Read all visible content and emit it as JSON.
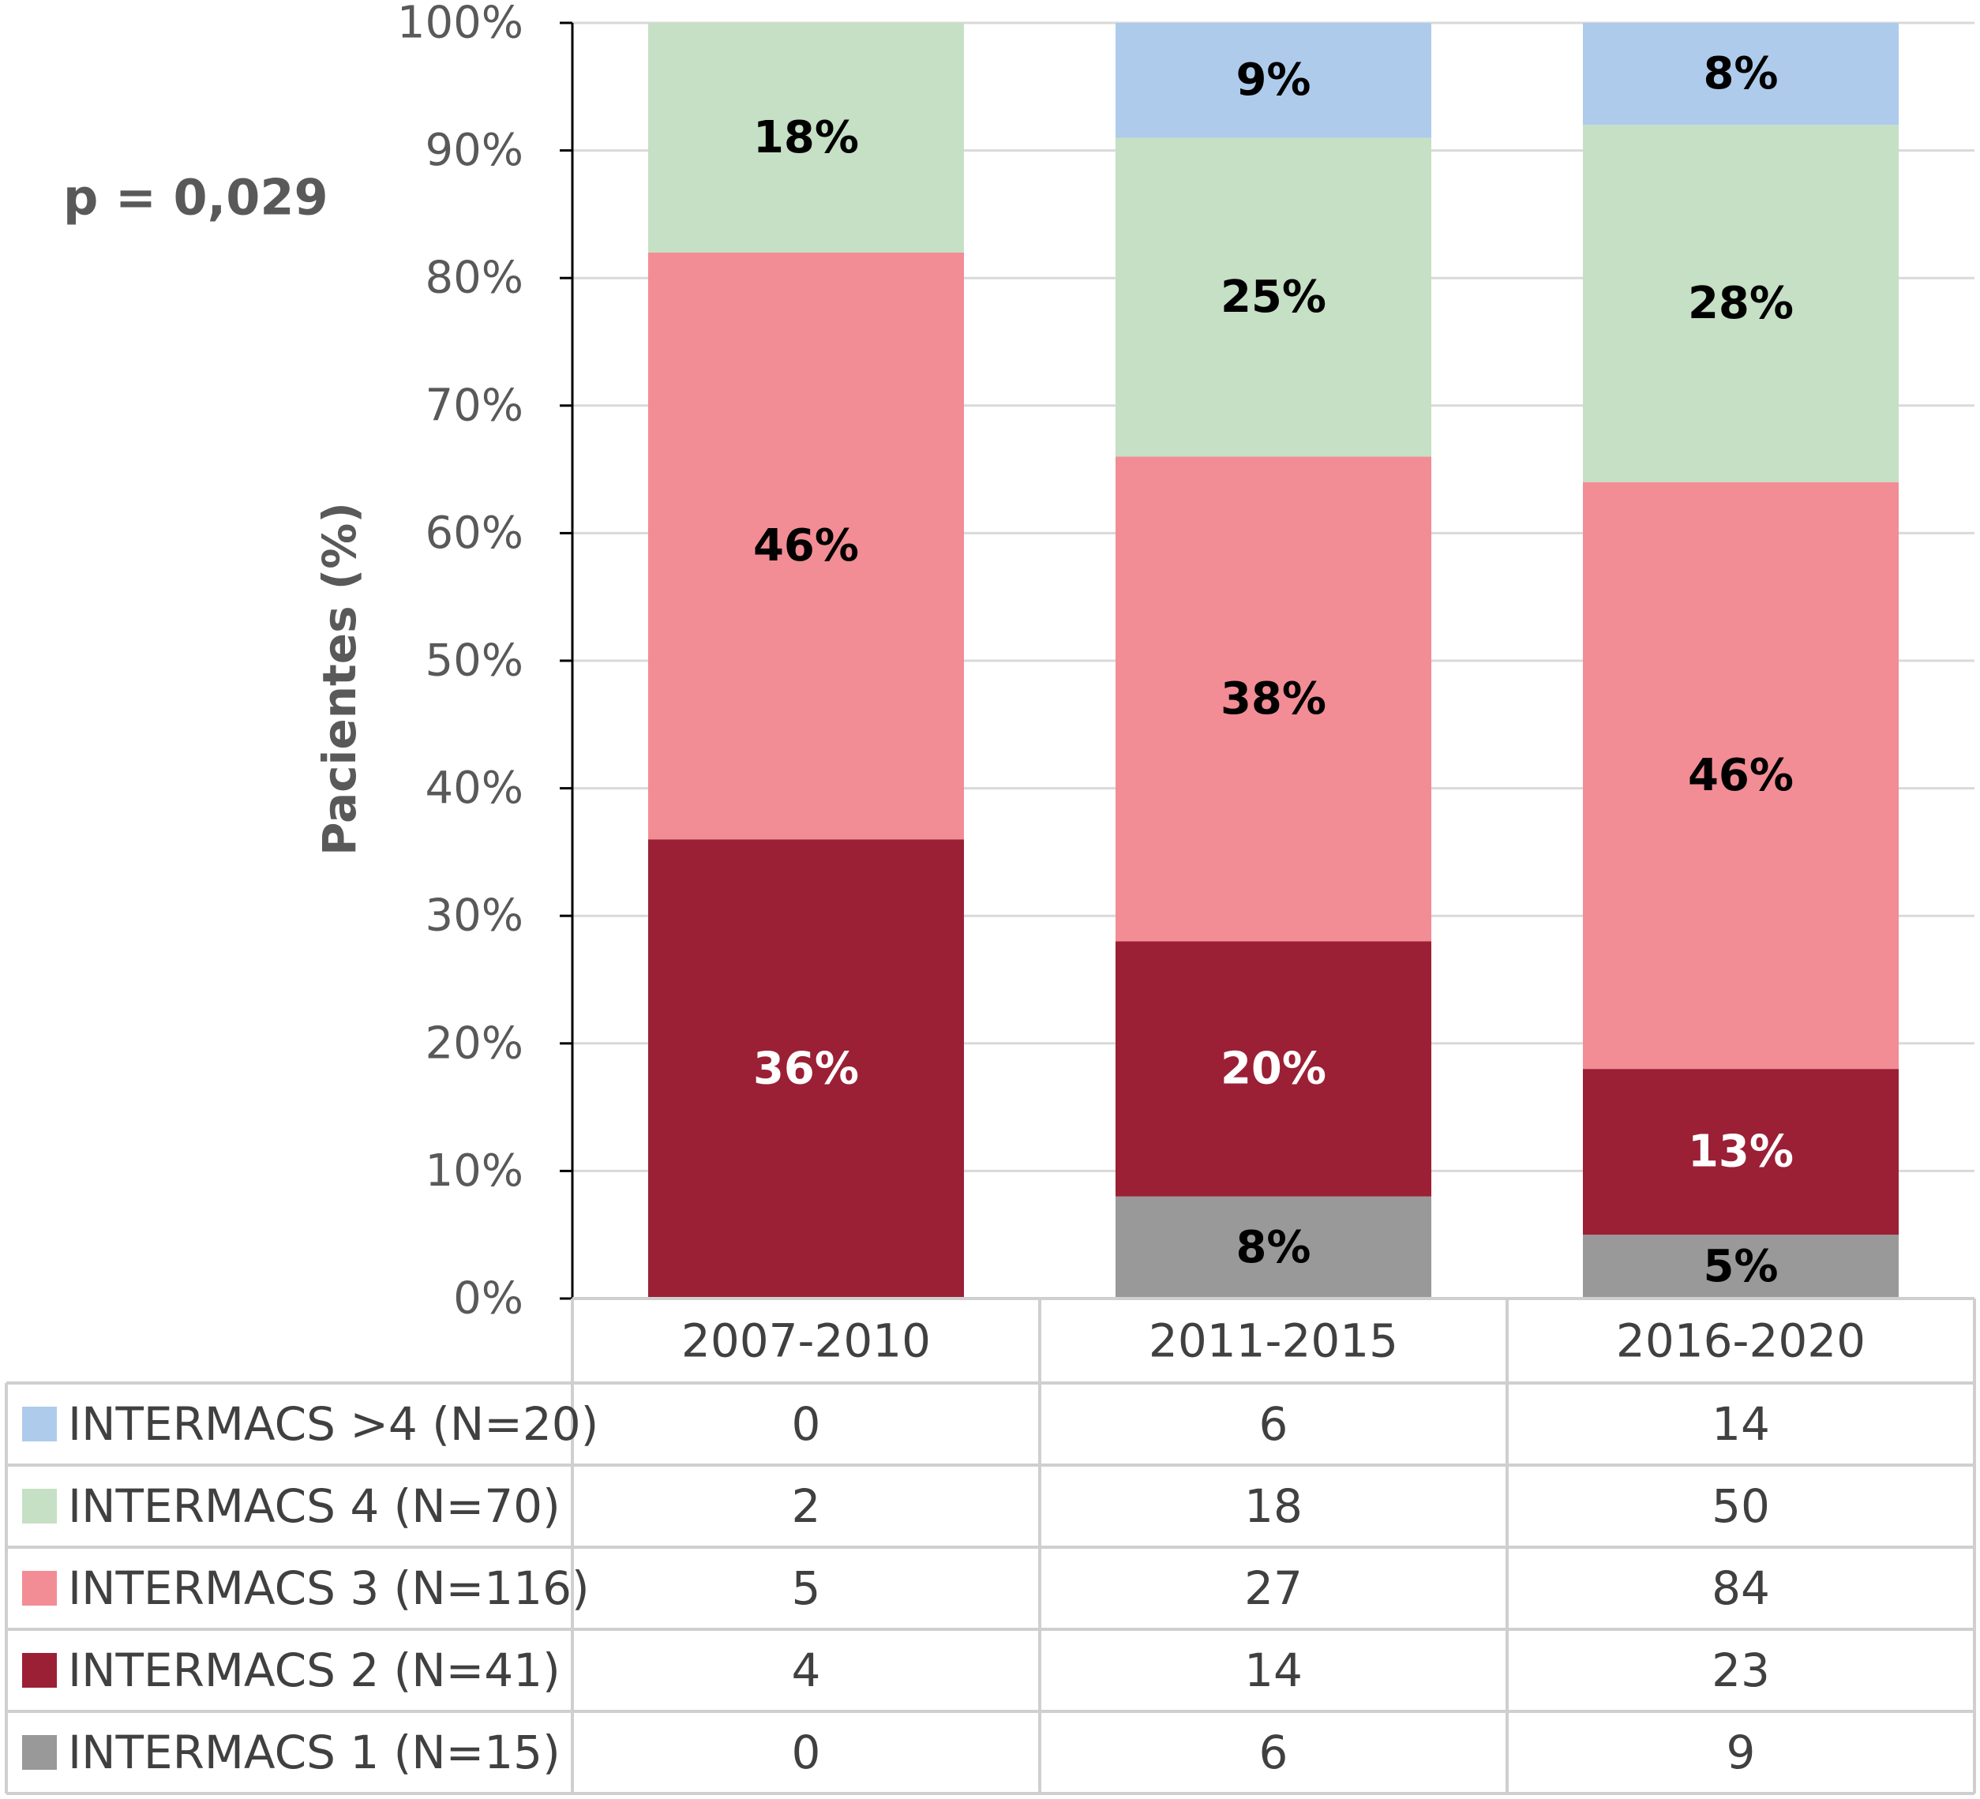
{
  "chart_data": {
    "type": "stacked_bar",
    "annotation": "p = 0,029",
    "y_label": "Pacientes (%)",
    "categories": [
      "2007-2010",
      "2011-2015",
      "2016-2020"
    ],
    "ylim": [
      0,
      100
    ],
    "yticks": [
      {
        "value": 0,
        "label": "0%"
      },
      {
        "value": 10,
        "label": "10%"
      },
      {
        "value": 20,
        "label": "20%"
      },
      {
        "value": 30,
        "label": "30%"
      },
      {
        "value": 40,
        "label": "40%"
      },
      {
        "value": 50,
        "label": "50%"
      },
      {
        "value": 60,
        "label": "60%"
      },
      {
        "value": 70,
        "label": "70%"
      },
      {
        "value": 80,
        "label": "80%"
      },
      {
        "value": 90,
        "label": "90%"
      },
      {
        "value": 100,
        "label": "100%"
      }
    ],
    "grid": true,
    "series": [
      {
        "name": "INTERMACS >4 (N=20)",
        "color": "#aecbeb",
        "values": [
          0,
          9,
          8
        ],
        "value_labels": [
          null,
          "9%",
          "8%"
        ],
        "counts": [
          0,
          6,
          14
        ]
      },
      {
        "name": "INTERMACS 4 (N=70)",
        "color": "#c5e0c4",
        "values": [
          18,
          25,
          28
        ],
        "value_labels": [
          "18%",
          "25%",
          "28%"
        ],
        "counts": [
          2,
          18,
          50
        ]
      },
      {
        "name": "INTERMACS 3 (N=116)",
        "color": "#f28d95",
        "values": [
          46,
          38,
          46
        ],
        "value_labels": [
          "46%",
          "38%",
          "46%"
        ],
        "counts": [
          5,
          27,
          84
        ]
      },
      {
        "name": "INTERMACS 2 (N=41)",
        "color": "#9b2035",
        "values": [
          36,
          20,
          13
        ],
        "value_labels": [
          "36%",
          "20%",
          "13%"
        ],
        "counts": [
          4,
          14,
          23
        ]
      },
      {
        "name": "INTERMACS 1 (N=15)",
        "color": "#999999",
        "values": [
          0,
          8,
          5
        ],
        "value_labels": [
          null,
          "8%",
          "5%"
        ],
        "counts": [
          0,
          6,
          9
        ]
      }
    ]
  }
}
